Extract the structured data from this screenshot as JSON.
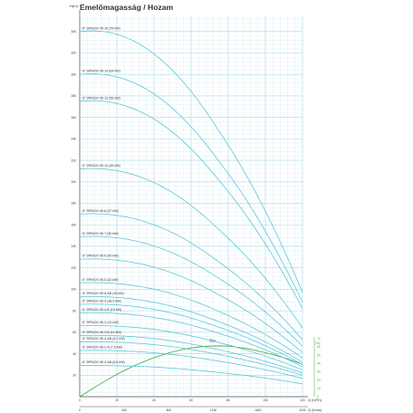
{
  "chart_data": {
    "type": "line",
    "title": "Emelőmagasság / Hozam",
    "ylabel": "H(m)",
    "xlabel": "Q (m³/h)",
    "xlabel_secondary": "Q (l/min)",
    "eta_axis_label": "(%)",
    "eta_label": "Eta",
    "xlim": [
      0,
      120
    ],
    "ylim": [
      0,
      355
    ],
    "x_ticks_primary": [
      0,
      20,
      40,
      60,
      80,
      100,
      120
    ],
    "x_ticks_secondary": [
      "0",
      "400",
      "800",
      "1200",
      "1600",
      "2000"
    ],
    "y_ticks": [
      20,
      40,
      60,
      80,
      100,
      120,
      140,
      160,
      180,
      200,
      220,
      240,
      260,
      280,
      300,
      320,
      340
    ],
    "eta_ticks": [
      0,
      10,
      20,
      30,
      40,
      50,
      60,
      70
    ],
    "grid": true,
    "series": [
      {
        "name": "6\" SPINOX 95-16 (75 kW)",
        "h0": 340,
        "x_end": 120,
        "h_end": 97
      },
      {
        "name": "6\" SPINOX 95-14 (64 kW)",
        "h0": 300,
        "x_end": 120,
        "h_end": 88
      },
      {
        "name": "6\" SPINOX 95-13 (55 kW)",
        "h0": 275,
        "x_end": 120,
        "h_end": 82
      },
      {
        "name": "6\" SPINOX 95-10 (45 kW)",
        "h0": 212,
        "x_end": 120,
        "h_end": 64
      },
      {
        "name": "6\" SPINOX 95-8 (37 kW)",
        "h0": 170,
        "x_end": 120,
        "h_end": 53
      },
      {
        "name": "6\" SPINOX 95-7 (30 kW)",
        "h0": 149,
        "x_end": 120,
        "h_end": 47
      },
      {
        "name": "6\" SPINOX 95-6 (26 kW)",
        "h0": 128,
        "x_end": 120,
        "h_end": 41
      },
      {
        "name": "6\" SPINOX 95-5 (22 kW)",
        "h0": 106,
        "x_end": 120,
        "h_end": 36
      },
      {
        "name": "6\" SPINOX 95-5-AB (15 kW)",
        "h0": 93,
        "x_end": 120,
        "h_end": 32
      },
      {
        "name": "6\" SPINOX 95-4 (18,5 kW)",
        "h0": 86,
        "x_end": 120,
        "h_end": 30
      },
      {
        "name": "6\" SPINOX 95-4-B (15 kW)",
        "h0": 78,
        "x_end": 120,
        "h_end": 28
      },
      {
        "name": "6\" SPINOX 95-3 (13 kW)",
        "h0": 66,
        "x_end": 120,
        "h_end": 25
      },
      {
        "name": "6\" SPINOX 95-3-B (11 kW)",
        "h0": 57,
        "x_end": 120,
        "h_end": 22
      },
      {
        "name": "6\" SPINOX 95-4-AB (9,2 kW)",
        "h0": 51,
        "x_end": 120,
        "h_end": 20
      },
      {
        "name": "6\" SPINOX 95-2-A (7,5 kW)",
        "h0": 43,
        "x_end": 120,
        "h_end": 17
      },
      {
        "name": "6\" SPINOX 95-2-AB (5,5 kW)",
        "h0": 29,
        "x_end": 120,
        "h_end": 12
      }
    ],
    "eta_series": {
      "name": "Eta",
      "x": [
        0,
        10,
        20,
        30,
        40,
        50,
        60,
        70,
        80,
        90,
        100,
        110,
        120
      ],
      "y": [
        0,
        14,
        27,
        38,
        47,
        54,
        59,
        61,
        61,
        58,
        53,
        47,
        39
      ]
    },
    "colors": {
      "curve": "#52c3d8",
      "eta": "#3aa83a",
      "grid_major": "#a6d8e3",
      "grid_minor": "#d7edf3",
      "axis": "#555555"
    }
  }
}
